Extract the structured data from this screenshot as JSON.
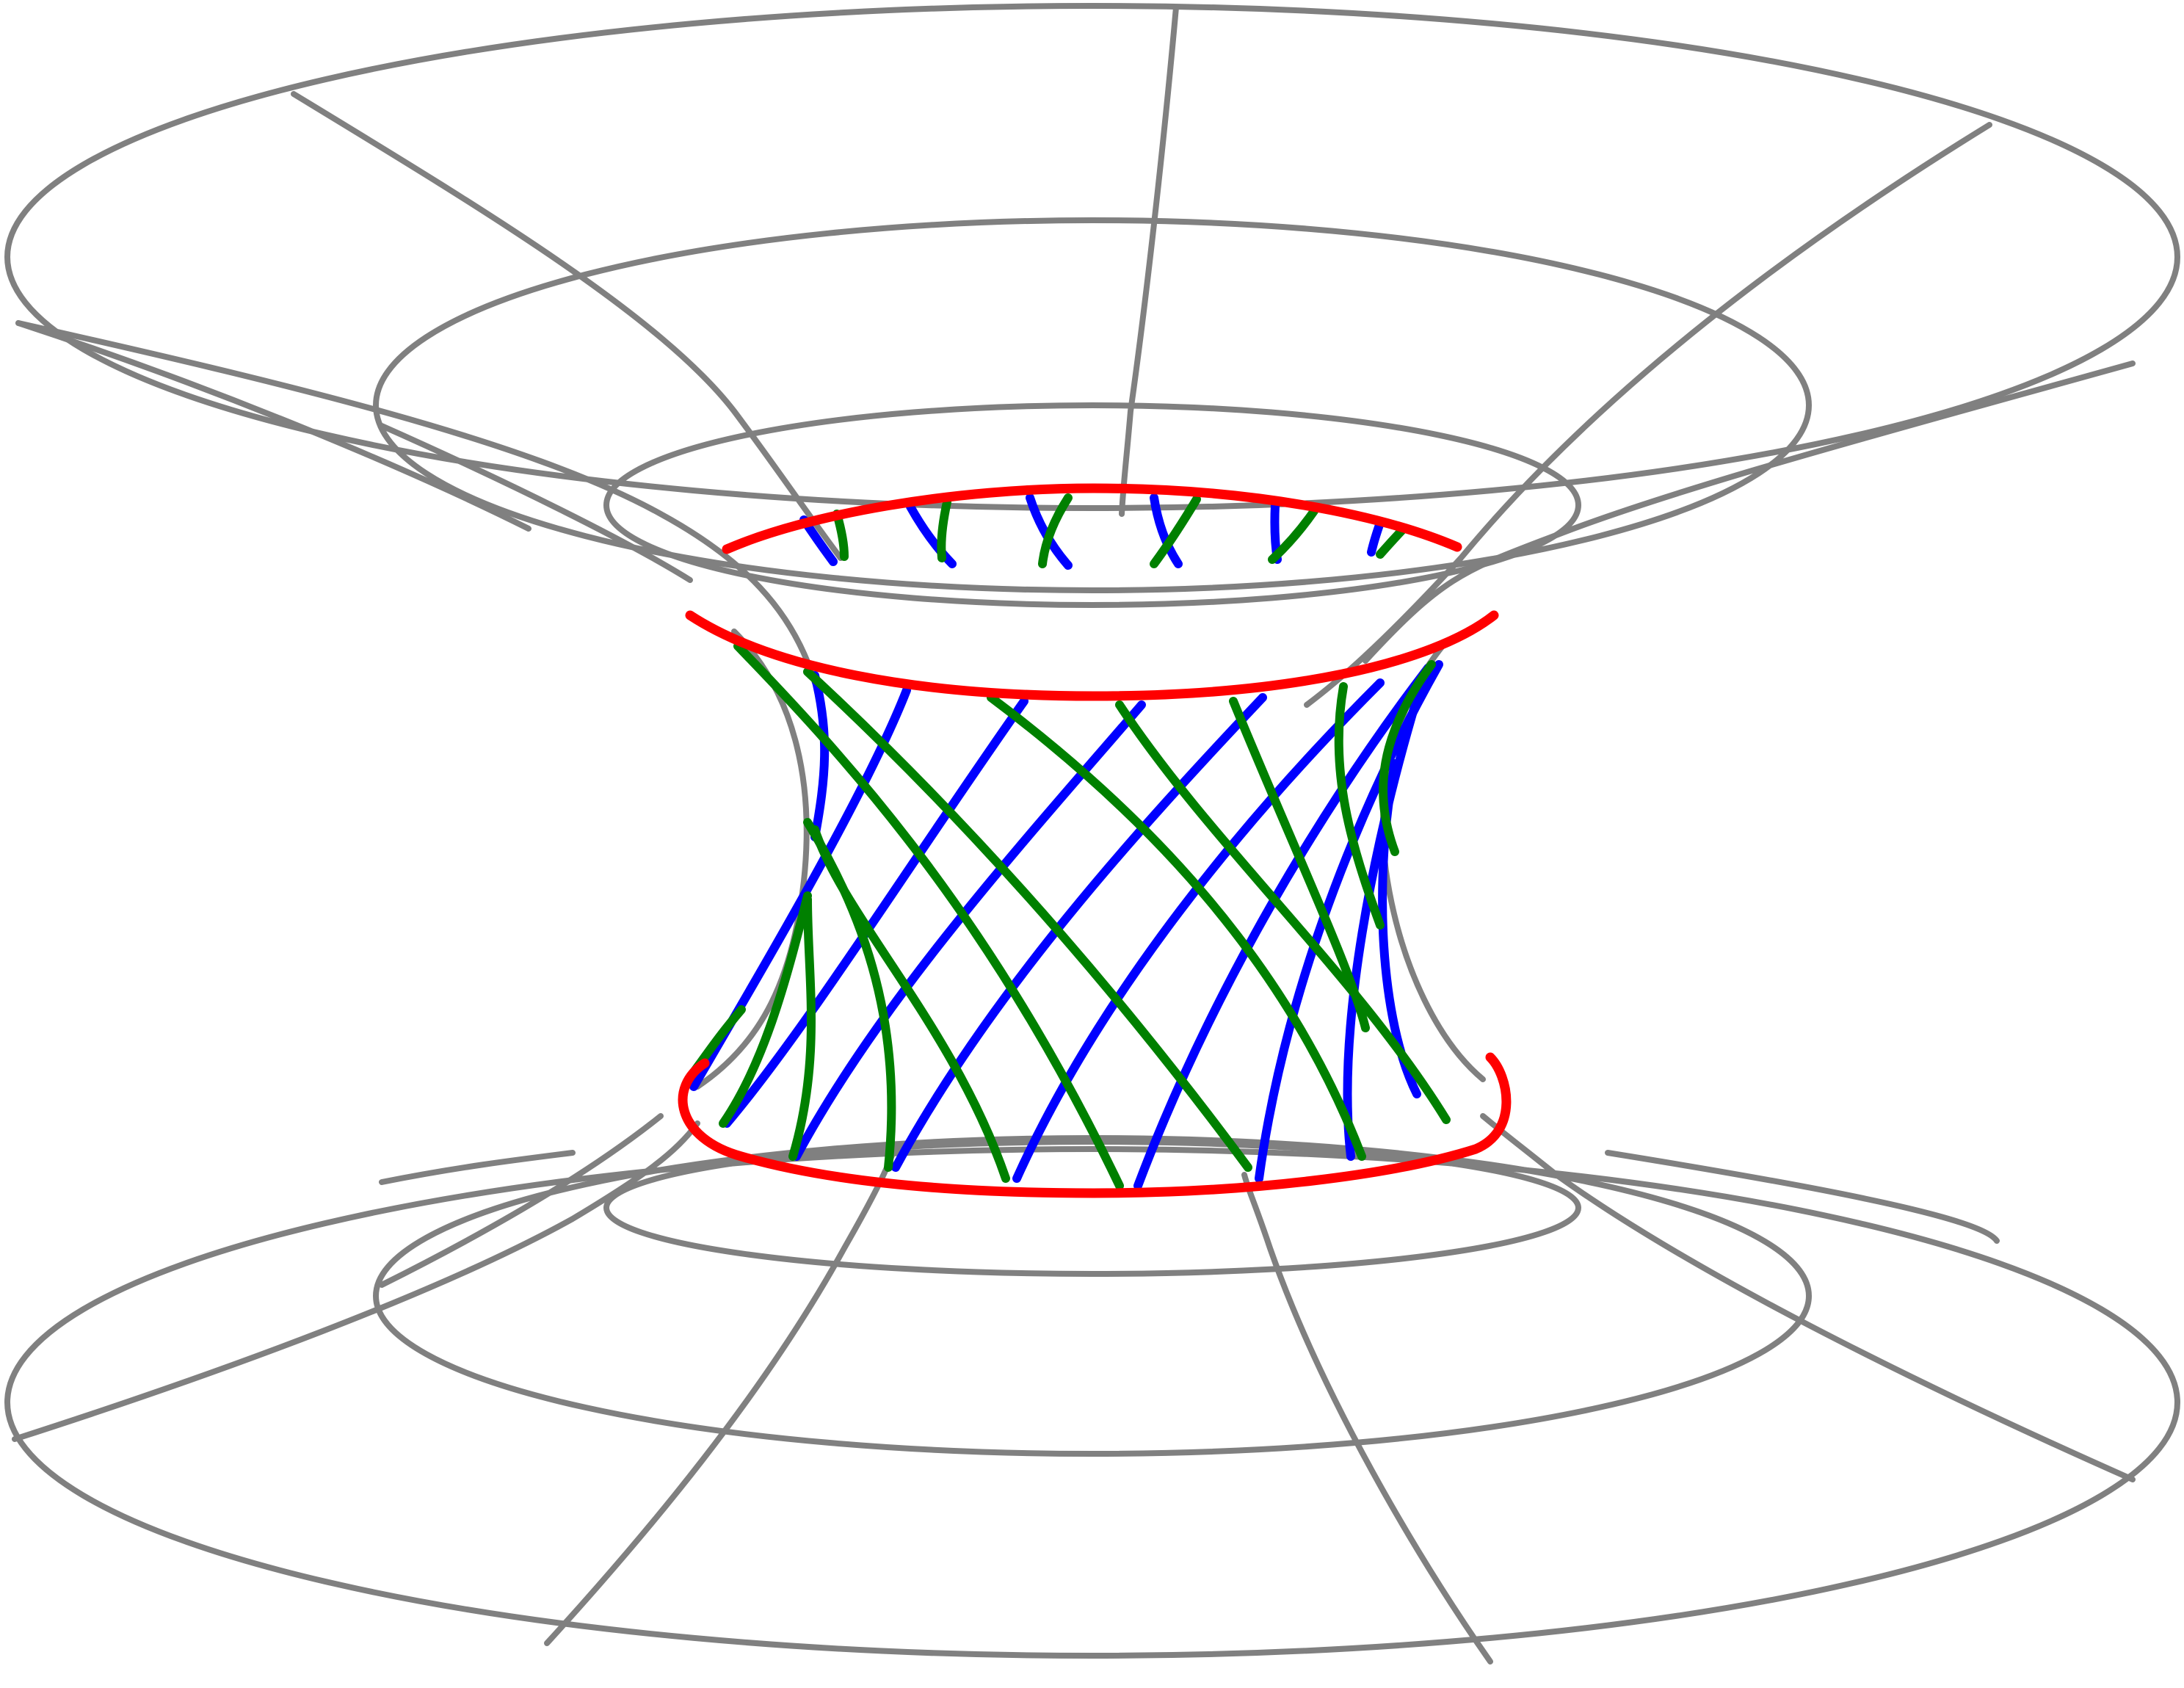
{
  "figure": {
    "colors": {
      "background": "#ffffff",
      "wireframe": "#808080",
      "throat_rings": "#ff0000",
      "family_a": "#0000ff",
      "family_b": "#008000"
    },
    "groups": [
      {
        "name": "outer-surface-wireframe",
        "color": "#808080"
      },
      {
        "name": "throat-boundary-rings",
        "color": "#ff0000"
      },
      {
        "name": "helical-lines-family-a",
        "color": "#0000ff"
      },
      {
        "name": "helical-lines-family-b",
        "color": "#008000"
      }
    ]
  }
}
